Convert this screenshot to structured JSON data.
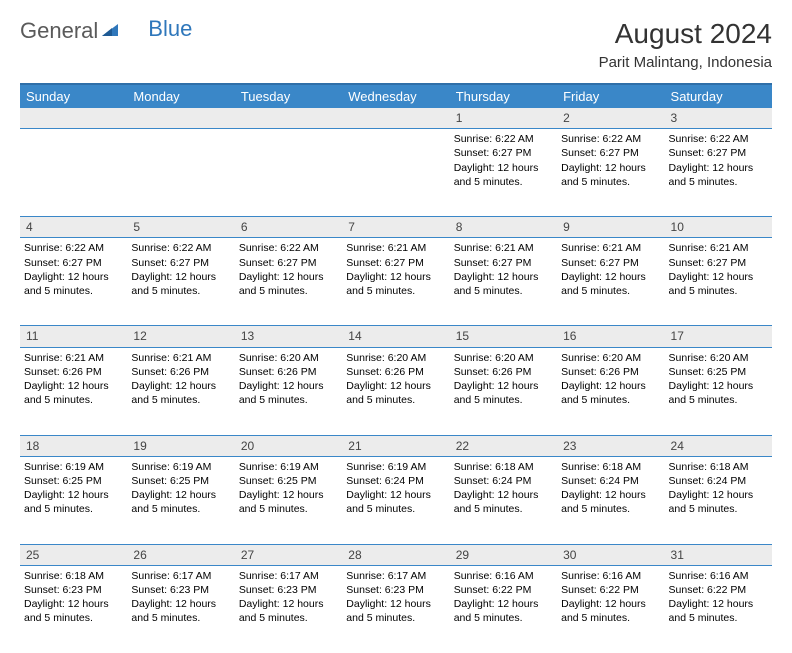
{
  "logo": {
    "general": "General",
    "blue": "Blue"
  },
  "title": "August 2024",
  "location": "Parit Malintang, Indonesia",
  "weekday_labels": [
    "Sunday",
    "Monday",
    "Tuesday",
    "Wednesday",
    "Thursday",
    "Friday",
    "Saturday"
  ],
  "header_bg": "#3a87c8",
  "header_fg": "#ffffff",
  "daynum_bg": "#ececec",
  "border_color": "#3a87c8",
  "font_family": "Arial",
  "cell_fontsize": 10.5,
  "weeks": [
    [
      null,
      null,
      null,
      null,
      {
        "day": "1",
        "sunrise": "Sunrise: 6:22 AM",
        "sunset": "Sunset: 6:27 PM",
        "daylight1": "Daylight: 12 hours",
        "daylight2": "and 5 minutes."
      },
      {
        "day": "2",
        "sunrise": "Sunrise: 6:22 AM",
        "sunset": "Sunset: 6:27 PM",
        "daylight1": "Daylight: 12 hours",
        "daylight2": "and 5 minutes."
      },
      {
        "day": "3",
        "sunrise": "Sunrise: 6:22 AM",
        "sunset": "Sunset: 6:27 PM",
        "daylight1": "Daylight: 12 hours",
        "daylight2": "and 5 minutes."
      }
    ],
    [
      {
        "day": "4",
        "sunrise": "Sunrise: 6:22 AM",
        "sunset": "Sunset: 6:27 PM",
        "daylight1": "Daylight: 12 hours",
        "daylight2": "and 5 minutes."
      },
      {
        "day": "5",
        "sunrise": "Sunrise: 6:22 AM",
        "sunset": "Sunset: 6:27 PM",
        "daylight1": "Daylight: 12 hours",
        "daylight2": "and 5 minutes."
      },
      {
        "day": "6",
        "sunrise": "Sunrise: 6:22 AM",
        "sunset": "Sunset: 6:27 PM",
        "daylight1": "Daylight: 12 hours",
        "daylight2": "and 5 minutes."
      },
      {
        "day": "7",
        "sunrise": "Sunrise: 6:21 AM",
        "sunset": "Sunset: 6:27 PM",
        "daylight1": "Daylight: 12 hours",
        "daylight2": "and 5 minutes."
      },
      {
        "day": "8",
        "sunrise": "Sunrise: 6:21 AM",
        "sunset": "Sunset: 6:27 PM",
        "daylight1": "Daylight: 12 hours",
        "daylight2": "and 5 minutes."
      },
      {
        "day": "9",
        "sunrise": "Sunrise: 6:21 AM",
        "sunset": "Sunset: 6:27 PM",
        "daylight1": "Daylight: 12 hours",
        "daylight2": "and 5 minutes."
      },
      {
        "day": "10",
        "sunrise": "Sunrise: 6:21 AM",
        "sunset": "Sunset: 6:27 PM",
        "daylight1": "Daylight: 12 hours",
        "daylight2": "and 5 minutes."
      }
    ],
    [
      {
        "day": "11",
        "sunrise": "Sunrise: 6:21 AM",
        "sunset": "Sunset: 6:26 PM",
        "daylight1": "Daylight: 12 hours",
        "daylight2": "and 5 minutes."
      },
      {
        "day": "12",
        "sunrise": "Sunrise: 6:21 AM",
        "sunset": "Sunset: 6:26 PM",
        "daylight1": "Daylight: 12 hours",
        "daylight2": "and 5 minutes."
      },
      {
        "day": "13",
        "sunrise": "Sunrise: 6:20 AM",
        "sunset": "Sunset: 6:26 PM",
        "daylight1": "Daylight: 12 hours",
        "daylight2": "and 5 minutes."
      },
      {
        "day": "14",
        "sunrise": "Sunrise: 6:20 AM",
        "sunset": "Sunset: 6:26 PM",
        "daylight1": "Daylight: 12 hours",
        "daylight2": "and 5 minutes."
      },
      {
        "day": "15",
        "sunrise": "Sunrise: 6:20 AM",
        "sunset": "Sunset: 6:26 PM",
        "daylight1": "Daylight: 12 hours",
        "daylight2": "and 5 minutes."
      },
      {
        "day": "16",
        "sunrise": "Sunrise: 6:20 AM",
        "sunset": "Sunset: 6:26 PM",
        "daylight1": "Daylight: 12 hours",
        "daylight2": "and 5 minutes."
      },
      {
        "day": "17",
        "sunrise": "Sunrise: 6:20 AM",
        "sunset": "Sunset: 6:25 PM",
        "daylight1": "Daylight: 12 hours",
        "daylight2": "and 5 minutes."
      }
    ],
    [
      {
        "day": "18",
        "sunrise": "Sunrise: 6:19 AM",
        "sunset": "Sunset: 6:25 PM",
        "daylight1": "Daylight: 12 hours",
        "daylight2": "and 5 minutes."
      },
      {
        "day": "19",
        "sunrise": "Sunrise: 6:19 AM",
        "sunset": "Sunset: 6:25 PM",
        "daylight1": "Daylight: 12 hours",
        "daylight2": "and 5 minutes."
      },
      {
        "day": "20",
        "sunrise": "Sunrise: 6:19 AM",
        "sunset": "Sunset: 6:25 PM",
        "daylight1": "Daylight: 12 hours",
        "daylight2": "and 5 minutes."
      },
      {
        "day": "21",
        "sunrise": "Sunrise: 6:19 AM",
        "sunset": "Sunset: 6:24 PM",
        "daylight1": "Daylight: 12 hours",
        "daylight2": "and 5 minutes."
      },
      {
        "day": "22",
        "sunrise": "Sunrise: 6:18 AM",
        "sunset": "Sunset: 6:24 PM",
        "daylight1": "Daylight: 12 hours",
        "daylight2": "and 5 minutes."
      },
      {
        "day": "23",
        "sunrise": "Sunrise: 6:18 AM",
        "sunset": "Sunset: 6:24 PM",
        "daylight1": "Daylight: 12 hours",
        "daylight2": "and 5 minutes."
      },
      {
        "day": "24",
        "sunrise": "Sunrise: 6:18 AM",
        "sunset": "Sunset: 6:24 PM",
        "daylight1": "Daylight: 12 hours",
        "daylight2": "and 5 minutes."
      }
    ],
    [
      {
        "day": "25",
        "sunrise": "Sunrise: 6:18 AM",
        "sunset": "Sunset: 6:23 PM",
        "daylight1": "Daylight: 12 hours",
        "daylight2": "and 5 minutes."
      },
      {
        "day": "26",
        "sunrise": "Sunrise: 6:17 AM",
        "sunset": "Sunset: 6:23 PM",
        "daylight1": "Daylight: 12 hours",
        "daylight2": "and 5 minutes."
      },
      {
        "day": "27",
        "sunrise": "Sunrise: 6:17 AM",
        "sunset": "Sunset: 6:23 PM",
        "daylight1": "Daylight: 12 hours",
        "daylight2": "and 5 minutes."
      },
      {
        "day": "28",
        "sunrise": "Sunrise: 6:17 AM",
        "sunset": "Sunset: 6:23 PM",
        "daylight1": "Daylight: 12 hours",
        "daylight2": "and 5 minutes."
      },
      {
        "day": "29",
        "sunrise": "Sunrise: 6:16 AM",
        "sunset": "Sunset: 6:22 PM",
        "daylight1": "Daylight: 12 hours",
        "daylight2": "and 5 minutes."
      },
      {
        "day": "30",
        "sunrise": "Sunrise: 6:16 AM",
        "sunset": "Sunset: 6:22 PM",
        "daylight1": "Daylight: 12 hours",
        "daylight2": "and 5 minutes."
      },
      {
        "day": "31",
        "sunrise": "Sunrise: 6:16 AM",
        "sunset": "Sunset: 6:22 PM",
        "daylight1": "Daylight: 12 hours",
        "daylight2": "and 5 minutes."
      }
    ]
  ]
}
